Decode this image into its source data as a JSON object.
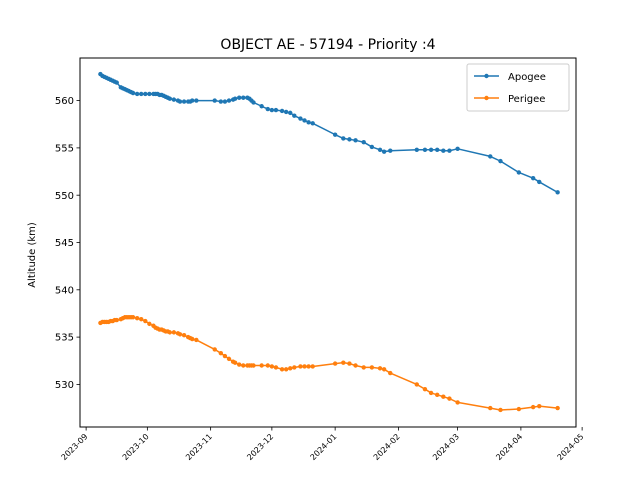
{
  "chart_data": {
    "type": "line",
    "title": "OBJECT AE - 57194 - Priority :4",
    "xlabel": "",
    "ylabel": "Altitude (km)",
    "x_type": "date",
    "xlim": [
      "2023-08-29",
      "2024-04-28"
    ],
    "ylim": [
      525.5,
      564.5
    ],
    "xticks": [
      "2023-09",
      "2023-10",
      "2023-11",
      "2023-12",
      "2024-01",
      "2024-02",
      "2024-03",
      "2024-04",
      "2024-05"
    ],
    "xtick_dates": [
      "2023-09-01",
      "2023-10-01",
      "2023-11-01",
      "2023-12-01",
      "2024-01-01",
      "2024-02-01",
      "2024-03-01",
      "2024-04-01",
      "2024-05-01"
    ],
    "yticks": [
      530,
      535,
      540,
      545,
      550,
      555,
      560
    ],
    "grid": false,
    "legend_position": "top-right",
    "series": [
      {
        "name": "Apogee",
        "color": "#1f77b4",
        "points": [
          [
            "2023-09-08",
            562.8
          ],
          [
            "2023-09-09",
            562.6
          ],
          [
            "2023-09-10",
            562.5
          ],
          [
            "2023-09-11",
            562.4
          ],
          [
            "2023-09-12",
            562.3
          ],
          [
            "2023-09-13",
            562.2
          ],
          [
            "2023-09-14",
            562.1
          ],
          [
            "2023-09-15",
            562.0
          ],
          [
            "2023-09-16",
            561.9
          ],
          [
            "2023-09-18",
            561.4
          ],
          [
            "2023-09-19",
            561.3
          ],
          [
            "2023-09-20",
            561.2
          ],
          [
            "2023-09-21",
            561.1
          ],
          [
            "2023-09-22",
            561.0
          ],
          [
            "2023-09-23",
            560.9
          ],
          [
            "2023-09-24",
            560.8
          ],
          [
            "2023-09-26",
            560.7
          ],
          [
            "2023-09-28",
            560.7
          ],
          [
            "2023-09-30",
            560.7
          ],
          [
            "2023-10-02",
            560.7
          ],
          [
            "2023-10-04",
            560.7
          ],
          [
            "2023-10-05",
            560.7
          ],
          [
            "2023-10-06",
            560.7
          ],
          [
            "2023-10-07",
            560.6
          ],
          [
            "2023-10-08",
            560.6
          ],
          [
            "2023-10-09",
            560.5
          ],
          [
            "2023-10-10",
            560.4
          ],
          [
            "2023-10-11",
            560.3
          ],
          [
            "2023-10-12",
            560.2
          ],
          [
            "2023-10-14",
            560.1
          ],
          [
            "2023-10-16",
            560.0
          ],
          [
            "2023-10-17",
            559.9
          ],
          [
            "2023-10-19",
            559.9
          ],
          [
            "2023-10-21",
            559.9
          ],
          [
            "2023-10-22",
            559.9
          ],
          [
            "2023-10-23",
            560.0
          ],
          [
            "2023-10-25",
            560.0
          ],
          [
            "2023-11-03",
            560.0
          ],
          [
            "2023-11-06",
            559.9
          ],
          [
            "2023-11-08",
            559.9
          ],
          [
            "2023-11-10",
            560.0
          ],
          [
            "2023-11-12",
            560.1
          ],
          [
            "2023-11-13",
            560.2
          ],
          [
            "2023-11-15",
            560.3
          ],
          [
            "2023-11-17",
            560.3
          ],
          [
            "2023-11-19",
            560.3
          ],
          [
            "2023-11-20",
            560.2
          ],
          [
            "2023-11-21",
            560.0
          ],
          [
            "2023-11-22",
            559.8
          ],
          [
            "2023-11-26",
            559.4
          ],
          [
            "2023-11-29",
            559.1
          ],
          [
            "2023-12-01",
            559.0
          ],
          [
            "2023-12-03",
            559.0
          ],
          [
            "2023-12-06",
            558.9
          ],
          [
            "2023-12-08",
            558.8
          ],
          [
            "2023-12-10",
            558.7
          ],
          [
            "2023-12-12",
            558.4
          ],
          [
            "2023-12-15",
            558.1
          ],
          [
            "2023-12-17",
            557.9
          ],
          [
            "2023-12-19",
            557.7
          ],
          [
            "2023-12-21",
            557.6
          ],
          [
            "2024-01-01",
            556.4
          ],
          [
            "2024-01-05",
            556.0
          ],
          [
            "2024-01-08",
            555.9
          ],
          [
            "2024-01-11",
            555.8
          ],
          [
            "2024-01-15",
            555.6
          ],
          [
            "2024-01-19",
            555.1
          ],
          [
            "2024-01-23",
            554.8
          ],
          [
            "2024-01-25",
            554.6
          ],
          [
            "2024-01-28",
            554.7
          ],
          [
            "2024-02-10",
            554.8
          ],
          [
            "2024-02-14",
            554.8
          ],
          [
            "2024-02-17",
            554.8
          ],
          [
            "2024-02-20",
            554.8
          ],
          [
            "2024-02-23",
            554.7
          ],
          [
            "2024-02-26",
            554.7
          ],
          [
            "2024-03-01",
            554.9
          ],
          [
            "2024-03-17",
            554.1
          ],
          [
            "2024-03-22",
            553.6
          ],
          [
            "2024-03-31",
            552.4
          ],
          [
            "2024-04-07",
            551.8
          ],
          [
            "2024-04-10",
            551.4
          ],
          [
            "2024-04-19",
            550.3
          ]
        ]
      },
      {
        "name": "Perigee",
        "color": "#ff7f0e",
        "points": [
          [
            "2023-09-08",
            536.5
          ],
          [
            "2023-09-09",
            536.6
          ],
          [
            "2023-09-10",
            536.6
          ],
          [
            "2023-09-11",
            536.6
          ],
          [
            "2023-09-12",
            536.6
          ],
          [
            "2023-09-13",
            536.7
          ],
          [
            "2023-09-14",
            536.7
          ],
          [
            "2023-09-15",
            536.8
          ],
          [
            "2023-09-16",
            536.8
          ],
          [
            "2023-09-18",
            536.9
          ],
          [
            "2023-09-19",
            537.0
          ],
          [
            "2023-09-20",
            537.1
          ],
          [
            "2023-09-21",
            537.1
          ],
          [
            "2023-09-22",
            537.1
          ],
          [
            "2023-09-23",
            537.1
          ],
          [
            "2023-09-24",
            537.1
          ],
          [
            "2023-09-26",
            537.0
          ],
          [
            "2023-09-28",
            536.9
          ],
          [
            "2023-09-30",
            536.7
          ],
          [
            "2023-10-02",
            536.4
          ],
          [
            "2023-10-04",
            536.2
          ],
          [
            "2023-10-05",
            536.0
          ],
          [
            "2023-10-06",
            535.9
          ],
          [
            "2023-10-07",
            535.8
          ],
          [
            "2023-10-08",
            535.8
          ],
          [
            "2023-10-09",
            535.7
          ],
          [
            "2023-10-10",
            535.6
          ],
          [
            "2023-10-11",
            535.6
          ],
          [
            "2023-10-12",
            535.5
          ],
          [
            "2023-10-14",
            535.5
          ],
          [
            "2023-10-16",
            535.4
          ],
          [
            "2023-10-17",
            535.3
          ],
          [
            "2023-10-19",
            535.2
          ],
          [
            "2023-10-21",
            535.0
          ],
          [
            "2023-10-22",
            534.9
          ],
          [
            "2023-10-23",
            534.8
          ],
          [
            "2023-10-25",
            534.7
          ],
          [
            "2023-11-03",
            533.7
          ],
          [
            "2023-11-06",
            533.3
          ],
          [
            "2023-11-08",
            533.0
          ],
          [
            "2023-11-10",
            532.7
          ],
          [
            "2023-11-12",
            532.4
          ],
          [
            "2023-11-13",
            532.3
          ],
          [
            "2023-11-15",
            532.1
          ],
          [
            "2023-11-17",
            532.0
          ],
          [
            "2023-11-19",
            532.0
          ],
          [
            "2023-11-20",
            532.0
          ],
          [
            "2023-11-21",
            532.0
          ],
          [
            "2023-11-22",
            532.0
          ],
          [
            "2023-11-26",
            532.0
          ],
          [
            "2023-11-29",
            532.0
          ],
          [
            "2023-12-01",
            531.9
          ],
          [
            "2023-12-03",
            531.8
          ],
          [
            "2023-12-06",
            531.6
          ],
          [
            "2023-12-08",
            531.6
          ],
          [
            "2023-12-10",
            531.7
          ],
          [
            "2023-12-12",
            531.8
          ],
          [
            "2023-12-15",
            531.9
          ],
          [
            "2023-12-17",
            531.9
          ],
          [
            "2023-12-19",
            531.9
          ],
          [
            "2023-12-21",
            531.9
          ],
          [
            "2024-01-01",
            532.2
          ],
          [
            "2024-01-05",
            532.3
          ],
          [
            "2024-01-08",
            532.2
          ],
          [
            "2024-01-11",
            532.0
          ],
          [
            "2024-01-15",
            531.8
          ],
          [
            "2024-01-19",
            531.8
          ],
          [
            "2024-01-23",
            531.7
          ],
          [
            "2024-01-25",
            531.6
          ],
          [
            "2024-01-28",
            531.2
          ],
          [
            "2024-02-10",
            530.0
          ],
          [
            "2024-02-14",
            529.5
          ],
          [
            "2024-02-17",
            529.1
          ],
          [
            "2024-02-20",
            528.9
          ],
          [
            "2024-02-23",
            528.7
          ],
          [
            "2024-02-26",
            528.5
          ],
          [
            "2024-03-01",
            528.1
          ],
          [
            "2024-03-17",
            527.5
          ],
          [
            "2024-03-22",
            527.3
          ],
          [
            "2024-03-31",
            527.4
          ],
          [
            "2024-04-07",
            527.6
          ],
          [
            "2024-04-10",
            527.7
          ],
          [
            "2024-04-19",
            527.5
          ]
        ]
      }
    ]
  }
}
